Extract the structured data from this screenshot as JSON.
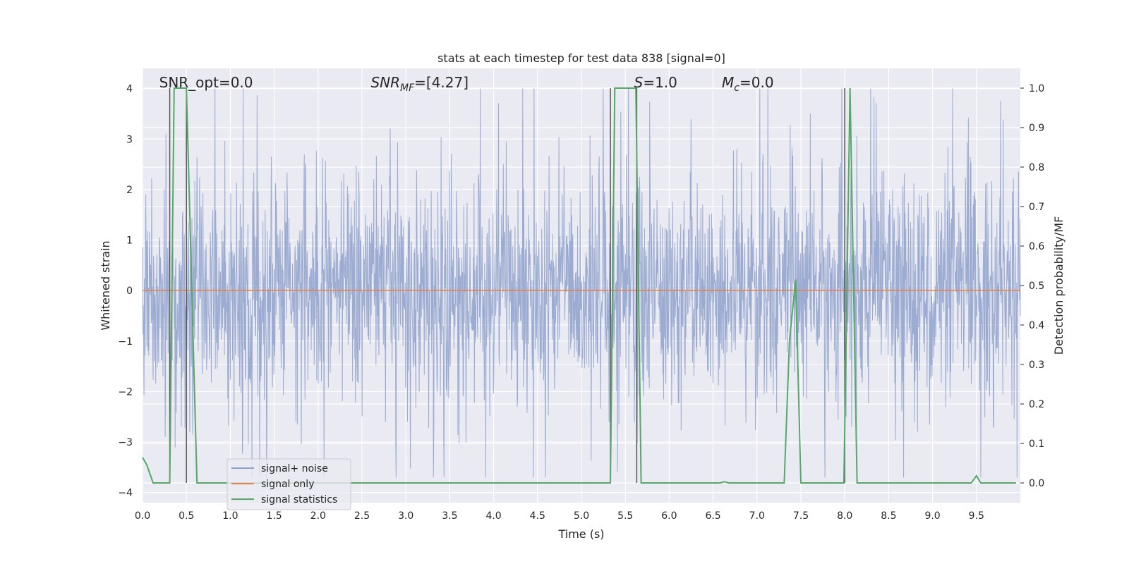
{
  "chart_data": {
    "type": "line",
    "title": "stats at each timestep for test data 838 [signal=0]",
    "xlabel": "Time (s)",
    "ylabel_left": "Whitened strain",
    "ylabel_right": "Detection probability/MF",
    "xlim": [
      0.0,
      10.0
    ],
    "ylim_left": [
      -4.2,
      4.4
    ],
    "ylim_right": [
      -0.05,
      1.05
    ],
    "x_ticks": [
      "0.0",
      "0.5",
      "1.0",
      "1.5",
      "2.0",
      "2.5",
      "3.0",
      "3.5",
      "4.0",
      "4.5",
      "5.0",
      "5.5",
      "6.0",
      "6.5",
      "7.0",
      "7.5",
      "8.0",
      "8.5",
      "9.0",
      "9.5"
    ],
    "y_left_ticks": [
      "−4",
      "−3",
      "−2",
      "−1",
      "0",
      "1",
      "2",
      "3",
      "4"
    ],
    "y_right_ticks": [
      "0.0",
      "0.1",
      "0.2",
      "0.3",
      "0.4",
      "0.5",
      "0.6",
      "0.7",
      "0.8",
      "0.9",
      "1.0"
    ],
    "grid": true,
    "legend_position": "lower-left",
    "annotations": [
      {
        "label": "SNR_opt=0.0",
        "x": 0.19
      },
      {
        "label": "SNR",
        "sub": "MF",
        "value": "=[4.27]",
        "x": 2.6
      },
      {
        "label": "S",
        "value": "=1.0",
        "x": 5.6
      },
      {
        "label": "M",
        "sub": "c",
        "value": "=0.0",
        "x": 6.6
      }
    ],
    "series": [
      {
        "name": "signal+ noise",
        "axis": "left",
        "color": "#8da0cb",
        "style": "dense noise, approx. band ±1.6 with spikes to about ±3.5",
        "value_range": [
          -3.7,
          4.0
        ]
      },
      {
        "name": "signal only",
        "axis": "left",
        "color": "#dd8452",
        "x": [
          0.0,
          10.0
        ],
        "y": [
          0.0,
          0.0
        ]
      },
      {
        "name": "signal statistics",
        "axis": "right",
        "color": "#55a868",
        "x": [
          0.0,
          0.05,
          0.12,
          0.31,
          0.36,
          0.5,
          0.62,
          5.33,
          5.38,
          5.62,
          5.68,
          6.58,
          6.63,
          6.68,
          7.31,
          7.37,
          7.44,
          7.5,
          7.99,
          8.06,
          8.14,
          9.44,
          9.5,
          9.55,
          9.95
        ],
        "y": [
          0.065,
          0.045,
          0.0,
          0.0,
          1.0,
          1.0,
          0.0,
          0.0,
          1.0,
          1.0,
          0.0,
          0.0,
          0.003,
          0.0,
          0.0,
          0.36,
          0.515,
          0.0,
          0.0,
          1.0,
          0.0,
          0.0,
          0.018,
          0.0,
          0.0
        ]
      }
    ],
    "vertical_markers": [
      0.31,
      0.5,
      5.33,
      5.63,
      8.0
    ],
    "colors": {
      "background": "#eaeaf2",
      "grid": "#ffffff",
      "marker": "#555555"
    }
  }
}
